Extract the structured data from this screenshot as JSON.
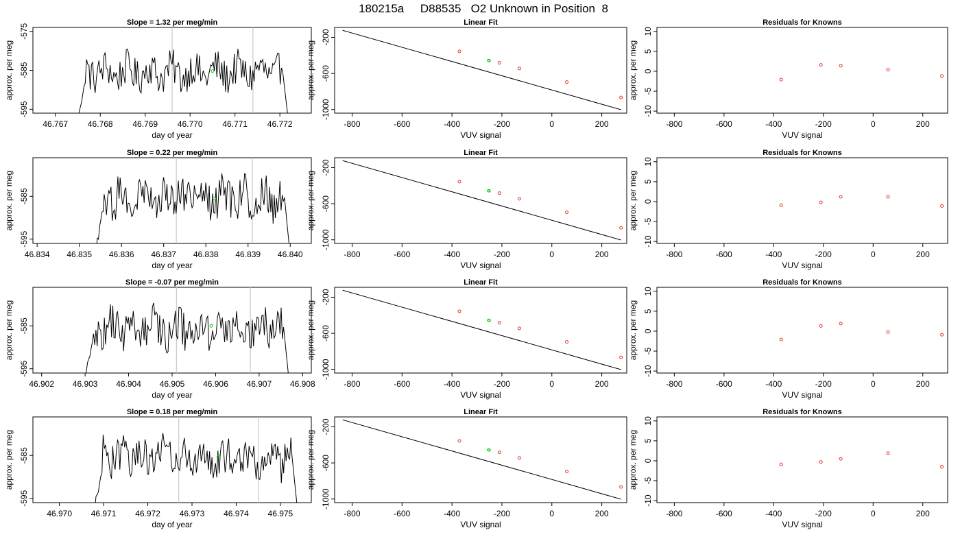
{
  "figure_title": "180215a     D88535   O2 Unknown in Position  8",
  "colors": {
    "trace": "#000000",
    "vline": "#c8c8c8",
    "unknown_point": "#00cc00",
    "known_point": "#e8322a",
    "fit_line": "#000000"
  },
  "chart_data": [
    {
      "panel": "trace",
      "row": 1,
      "type": "line",
      "title": "Slope =  1.32  per meg/min",
      "xlabel": "day of year",
      "ylabel": "approx. per meg",
      "xlim": [
        46.7665,
        46.7727
      ],
      "ylim": [
        -596,
        -574
      ],
      "xticks": [
        "46.767",
        "46.768",
        "46.769",
        "46.770",
        "46.771",
        "46.772"
      ],
      "yticks": [
        "-575",
        "-585",
        "-595"
      ],
      "start": 46.7675,
      "end": 46.7722,
      "vlines": [
        46.7696,
        46.7714
      ],
      "marker": {
        "x": 46.7705,
        "y": -585.2
      }
    },
    {
      "panel": "fit",
      "row": 1,
      "type": "scatter",
      "title": "Linear Fit",
      "xlabel": "VUV signal",
      "ylabel": "approx. per meg",
      "xlim": [
        -870,
        300
      ],
      "ylim": [
        -1040,
        -90
      ],
      "xticks": [
        "-800",
        "-600",
        "-400",
        "-200",
        "0",
        "200"
      ],
      "yticks": [
        "-200",
        "-600",
        "-1000"
      ],
      "line": {
        "x": [
          -838,
          277
        ],
        "y": [
          -122,
          -1002
        ]
      },
      "knowns": {
        "x": [
          -370,
          -210,
          -130,
          60,
          277
        ],
        "y": [
          -356,
          -482,
          -545,
          -695,
          -866
        ]
      },
      "unknown": {
        "x": [
          -253,
          -251
        ],
        "y": [
          -456,
          -457
        ]
      }
    },
    {
      "panel": "residuals",
      "row": 1,
      "type": "scatter",
      "title": "Residuals for Knowns",
      "xlabel": "VUV signal",
      "ylabel": "approx. per meg",
      "xlim": [
        -870,
        300
      ],
      "ylim": [
        -10.5,
        11
      ],
      "xticks": [
        "-800",
        "-600",
        "-400",
        "-200",
        "0",
        "200"
      ],
      "yticks": [
        "-10",
        "-5",
        "0",
        "5",
        "10"
      ],
      "x": [
        -370,
        -210,
        -130,
        60,
        277
      ],
      "y": [
        -2.1,
        1.6,
        1.4,
        0.4,
        -1.2
      ]
    },
    {
      "panel": "trace",
      "row": 2,
      "type": "line",
      "title": "Slope =  0.22  per meg/min",
      "xlabel": "day of year",
      "ylabel": "approx. per meg",
      "xlim": [
        46.8339,
        46.8405
      ],
      "ylim": [
        -596,
        -576
      ],
      "xticks": [
        "46.834",
        "46.835",
        "46.836",
        "46.837",
        "46.838",
        "46.839",
        "46.840"
      ],
      "yticks": [
        "-585",
        "-595"
      ],
      "start": 46.8354,
      "end": 46.84,
      "vlines": [
        46.8373,
        46.8391
      ],
      "marker": {
        "x": 46.8382,
        "y": -585.5
      }
    },
    {
      "panel": "fit",
      "row": 2,
      "type": "scatter",
      "title": "Linear Fit",
      "xlabel": "VUV signal",
      "ylabel": "approx. per meg",
      "xlim": [
        -870,
        300
      ],
      "ylim": [
        -1040,
        -90
      ],
      "xticks": [
        "-800",
        "-600",
        "-400",
        "-200",
        "0",
        "200"
      ],
      "yticks": [
        "-200",
        "-600",
        "-1000"
      ],
      "line": {
        "x": [
          -838,
          277
        ],
        "y": [
          -122,
          -1002
        ]
      },
      "knowns": {
        "x": [
          -370,
          -210,
          -130,
          60,
          277
        ],
        "y": [
          -356,
          -482,
          -545,
          -695,
          -866
        ]
      },
      "unknown": {
        "x": [
          -253,
          -251
        ],
        "y": [
          -456,
          -457
        ]
      }
    },
    {
      "panel": "residuals",
      "row": 2,
      "type": "scatter",
      "title": "Residuals for Knowns",
      "xlabel": "VUV signal",
      "ylabel": "approx. per meg",
      "xlim": [
        -870,
        300
      ],
      "ylim": [
        -10.5,
        11
      ],
      "xticks": [
        "-800",
        "-600",
        "-400",
        "-200",
        "0",
        "200"
      ],
      "yticks": [
        "-10",
        "-5",
        "0",
        "5",
        "10"
      ],
      "x": [
        -370,
        -210,
        -130,
        60,
        277
      ],
      "y": [
        -0.9,
        -0.2,
        1.2,
        1.2,
        -1.1
      ]
    },
    {
      "panel": "trace",
      "row": 3,
      "type": "line",
      "title": "Slope =  -0.07  per meg/min",
      "xlabel": "day of year",
      "ylabel": "approx. per meg",
      "xlim": [
        46.9018,
        46.9082
      ],
      "ylim": [
        -596,
        -576
      ],
      "xticks": [
        "46.902",
        "46.903",
        "46.904",
        "46.905",
        "46.906",
        "46.907",
        "46.908"
      ],
      "yticks": [
        "-585",
        "-595"
      ],
      "start": 46.903,
      "end": 46.9077,
      "vlines": [
        46.9051,
        46.9068
      ],
      "marker": {
        "x": 46.9059,
        "y": -585.0
      }
    },
    {
      "panel": "fit",
      "row": 3,
      "type": "scatter",
      "title": "Linear Fit",
      "xlabel": "VUV signal",
      "ylabel": "approx. per meg",
      "xlim": [
        -870,
        300
      ],
      "ylim": [
        -1040,
        -90
      ],
      "xticks": [
        "-800",
        "-600",
        "-400",
        "-200",
        "0",
        "200"
      ],
      "yticks": [
        "-200",
        "-600",
        "-1000"
      ],
      "line": {
        "x": [
          -838,
          277
        ],
        "y": [
          -122,
          -1002
        ]
      },
      "knowns": {
        "x": [
          -370,
          -210,
          -130,
          60,
          277
        ],
        "y": [
          -356,
          -482,
          -545,
          -695,
          -866
        ]
      },
      "unknown": {
        "x": [
          -253,
          -251
        ],
        "y": [
          -456,
          -457
        ]
      }
    },
    {
      "panel": "residuals",
      "row": 3,
      "type": "scatter",
      "title": "Residuals for Knowns",
      "xlabel": "VUV signal",
      "ylabel": "approx. per meg",
      "xlim": [
        -870,
        300
      ],
      "ylim": [
        -10.5,
        11
      ],
      "xticks": [
        "-800",
        "-600",
        "-400",
        "-200",
        "0",
        "200"
      ],
      "yticks": [
        "-10",
        "-5",
        "0",
        "5",
        "10"
      ],
      "x": [
        -370,
        -210,
        -130,
        60,
        277
      ],
      "y": [
        -2.1,
        1.3,
        1.9,
        -0.2,
        -0.9
      ]
    },
    {
      "panel": "trace",
      "row": 4,
      "type": "line",
      "title": "Slope =  0.18  per meg/min",
      "xlabel": "day of year",
      "ylabel": "approx. per meg",
      "xlim": [
        46.9694,
        46.9757
      ],
      "ylim": [
        -596,
        -576
      ],
      "xticks": [
        "46.970",
        "46.971",
        "46.972",
        "46.973",
        "46.974",
        "46.975"
      ],
      "yticks": [
        "-585",
        "-595"
      ],
      "start": 46.9708,
      "end": 46.9754,
      "vlines": [
        46.9727,
        46.9745
      ],
      "marker": {
        "x": 46.9736,
        "y": -585.3
      }
    },
    {
      "panel": "fit",
      "row": 4,
      "type": "scatter",
      "title": "Linear Fit",
      "xlabel": "VUV signal",
      "ylabel": "approx. per meg",
      "xlim": [
        -870,
        300
      ],
      "ylim": [
        -1040,
        -90
      ],
      "xticks": [
        "-800",
        "-600",
        "-400",
        "-200",
        "0",
        "200"
      ],
      "yticks": [
        "-200",
        "-600",
        "-1000"
      ],
      "line": {
        "x": [
          -838,
          277
        ],
        "y": [
          -122,
          -1002
        ]
      },
      "knowns": {
        "x": [
          -370,
          -210,
          -130,
          60,
          277
        ],
        "y": [
          -356,
          -482,
          -545,
          -695,
          -866
        ]
      },
      "unknown": {
        "x": [
          -253,
          -251
        ],
        "y": [
          -456,
          -457
        ]
      }
    },
    {
      "panel": "residuals",
      "row": 4,
      "type": "scatter",
      "title": "Residuals for Knowns",
      "xlabel": "VUV signal",
      "ylabel": "approx. per meg",
      "xlim": [
        -870,
        300
      ],
      "ylim": [
        -10.5,
        11
      ],
      "xticks": [
        "-800",
        "-600",
        "-400",
        "-200",
        "0",
        "200"
      ],
      "yticks": [
        "-10",
        "-5",
        "0",
        "5",
        "10"
      ],
      "x": [
        -370,
        -210,
        -130,
        60,
        277
      ],
      "y": [
        -0.9,
        -0.3,
        0.5,
        1.9,
        -1.5
      ]
    }
  ]
}
